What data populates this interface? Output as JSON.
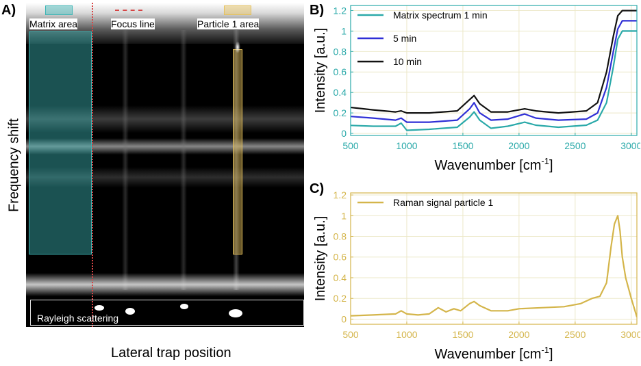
{
  "panel_a": {
    "letter": "A)",
    "legend": {
      "matrix_area": "Matrix area",
      "focus_line": "Focus line",
      "particle_area": "Particle 1 area"
    },
    "rayleigh_label": "Rayleigh scattering",
    "xlabel": "Lateral trap position",
    "ylabel": "Frequency shift",
    "colors": {
      "matrix": "#3cb5b5",
      "focus": "#d64545",
      "particle": "#e6c15a"
    }
  },
  "chart_data": [
    {
      "panel": "B)",
      "type": "line",
      "xlabel": "Wavenumber [cm",
      "xlabel_sup": "-1",
      "xlabel_end": "]",
      "ylabel": "Intensity [a.u.]",
      "xlim": [
        500,
        3050
      ],
      "ylim": [
        -0.02,
        1.25
      ],
      "xticks": [
        500,
        1000,
        1500,
        2000,
        2500,
        3000
      ],
      "yticks": [
        0,
        0.2,
        0.4,
        0.6,
        0.8,
        1,
        1.2
      ],
      "ytick_labels": [
        "0",
        "0.2",
        "0.4",
        "0.6",
        "0.8",
        "1",
        "1.2"
      ],
      "grid": true,
      "legend_position": "top-left",
      "axis_color": "#2aa9a9",
      "series": [
        {
          "name": "Matrix spectrum 1 min",
          "color": "#2aa9a9",
          "x": [
            450,
            700,
            900,
            950,
            1000,
            1200,
            1450,
            1560,
            1600,
            1650,
            1750,
            1900,
            2050,
            2150,
            2350,
            2600,
            2700,
            2780,
            2840,
            2880,
            2920,
            2960,
            3050
          ],
          "y": [
            0.08,
            0.07,
            0.07,
            0.1,
            0.03,
            0.04,
            0.06,
            0.16,
            0.21,
            0.13,
            0.05,
            0.07,
            0.11,
            0.08,
            0.06,
            0.08,
            0.13,
            0.3,
            0.65,
            0.92,
            1.0,
            1.0,
            1.0
          ]
        },
        {
          "name": "5 min",
          "color": "#2f2fd6",
          "x": [
            450,
            700,
            900,
            950,
            1000,
            1200,
            1450,
            1560,
            1600,
            1650,
            1750,
            1900,
            2050,
            2150,
            2350,
            2600,
            2700,
            2780,
            2840,
            2880,
            2920,
            2960,
            3050
          ],
          "y": [
            0.17,
            0.15,
            0.13,
            0.15,
            0.11,
            0.11,
            0.13,
            0.24,
            0.3,
            0.2,
            0.13,
            0.14,
            0.19,
            0.15,
            0.13,
            0.14,
            0.2,
            0.45,
            0.8,
            1.02,
            1.1,
            1.1,
            1.1
          ]
        },
        {
          "name": "10 min",
          "color": "#111111",
          "x": [
            450,
            700,
            900,
            950,
            1000,
            1200,
            1450,
            1560,
            1600,
            1650,
            1750,
            1900,
            2050,
            2150,
            2350,
            2600,
            2700,
            2780,
            2840,
            2880,
            2920,
            2960,
            3050
          ],
          "y": [
            0.26,
            0.23,
            0.21,
            0.22,
            0.2,
            0.2,
            0.22,
            0.33,
            0.37,
            0.29,
            0.21,
            0.21,
            0.24,
            0.22,
            0.2,
            0.22,
            0.3,
            0.6,
            0.95,
            1.15,
            1.2,
            1.2,
            1.2
          ]
        }
      ]
    },
    {
      "panel": "C)",
      "type": "line",
      "xlabel": "Wavenumber [cm",
      "xlabel_sup": "-1",
      "xlabel_end": "]",
      "ylabel": "Intensity [a.u.]",
      "xlim": [
        500,
        3050
      ],
      "ylim": [
        -0.05,
        1.22
      ],
      "xticks": [
        500,
        1000,
        1500,
        2000,
        2500,
        3000
      ],
      "yticks": [
        0,
        0.2,
        0.4,
        0.6,
        0.8,
        1,
        1.2
      ],
      "ytick_labels": [
        "0",
        "0.2",
        "0.4",
        "0.6",
        "0.8",
        "1",
        "1.2"
      ],
      "grid": true,
      "legend_position": "top-left",
      "axis_color": "#d4b54a",
      "series": [
        {
          "name": "Raman signal particle 1",
          "color": "#d4b54a",
          "x": [
            450,
            700,
            900,
            950,
            1000,
            1100,
            1200,
            1280,
            1350,
            1420,
            1480,
            1560,
            1600,
            1650,
            1750,
            1900,
            2000,
            2200,
            2400,
            2550,
            2650,
            2720,
            2780,
            2820,
            2850,
            2880,
            2900,
            2920,
            2950,
            3000,
            3050
          ],
          "y": [
            0.03,
            0.04,
            0.05,
            0.08,
            0.05,
            0.04,
            0.05,
            0.11,
            0.07,
            0.1,
            0.08,
            0.15,
            0.17,
            0.13,
            0.08,
            0.08,
            0.1,
            0.11,
            0.12,
            0.15,
            0.2,
            0.22,
            0.35,
            0.7,
            0.92,
            1.0,
            0.85,
            0.6,
            0.4,
            0.2,
            0.02
          ]
        }
      ]
    }
  ]
}
